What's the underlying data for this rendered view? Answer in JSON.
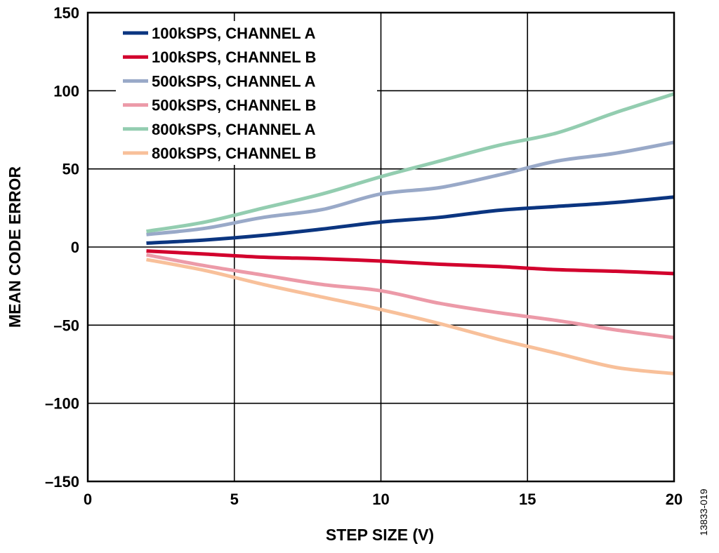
{
  "chart_data": {
    "type": "line",
    "xlabel": "STEP SIZE (V)",
    "ylabel": "MEAN CODE ERROR",
    "xlim": [
      0,
      20
    ],
    "ylim": [
      -150,
      150
    ],
    "x_ticks": [
      "0",
      "5",
      "10",
      "15",
      "20"
    ],
    "y_ticks": [
      "150",
      "100",
      "50",
      "0",
      "–50",
      "–100",
      "–150"
    ],
    "x_tick_values": [
      0,
      5,
      10,
      15,
      20
    ],
    "y_tick_values": [
      150,
      100,
      50,
      0,
      -50,
      -100,
      -150
    ],
    "grid": true,
    "legend_position": "top-left",
    "figure_id": "13833-019",
    "series": [
      {
        "name": "100kSPS, CHANNEL A",
        "color": "#0b3580",
        "x": [
          2,
          4,
          6,
          8,
          10,
          12,
          14,
          16,
          18,
          20
        ],
        "y": [
          2.5,
          4.5,
          7.5,
          11.5,
          16,
          19,
          23.5,
          26,
          28.5,
          32
        ]
      },
      {
        "name": "100kSPS, CHANNEL B",
        "color": "#d2002d",
        "x": [
          2,
          4,
          6,
          8,
          10,
          12,
          14,
          16,
          18,
          20
        ],
        "y": [
          -2.5,
          -4.5,
          -6.5,
          -7.5,
          -9,
          -11,
          -12.5,
          -14.5,
          -15.5,
          -17
        ]
      },
      {
        "name": "500kSPS, CHANNEL A",
        "color": "#99a9c8",
        "x": [
          2,
          4,
          6,
          8,
          10,
          12,
          14,
          16,
          18,
          20
        ],
        "y": [
          8,
          12,
          19,
          24,
          34,
          38,
          46,
          55,
          60,
          67
        ]
      },
      {
        "name": "500kSPS, CHANNEL B",
        "color": "#ec9aa8",
        "x": [
          2,
          4,
          6,
          8,
          10,
          12,
          14,
          16,
          18,
          20
        ],
        "y": [
          -5,
          -12,
          -18,
          -24,
          -28,
          -36,
          -42,
          -47,
          -53,
          -58
        ]
      },
      {
        "name": "800kSPS, CHANNEL A",
        "color": "#93cdb0",
        "x": [
          2,
          4,
          6,
          8,
          10,
          12,
          14,
          16,
          18,
          20
        ],
        "y": [
          10,
          16,
          25,
          34,
          45,
          55,
          65,
          73,
          86,
          98
        ]
      },
      {
        "name": "800kSPS, CHANNEL B",
        "color": "#f8c09a",
        "x": [
          2,
          4,
          6,
          8,
          10,
          12,
          14,
          16,
          18,
          20
        ],
        "y": [
          -8,
          -15,
          -24,
          -32,
          -40,
          -49,
          -59,
          -68,
          -77,
          -81
        ]
      }
    ]
  }
}
